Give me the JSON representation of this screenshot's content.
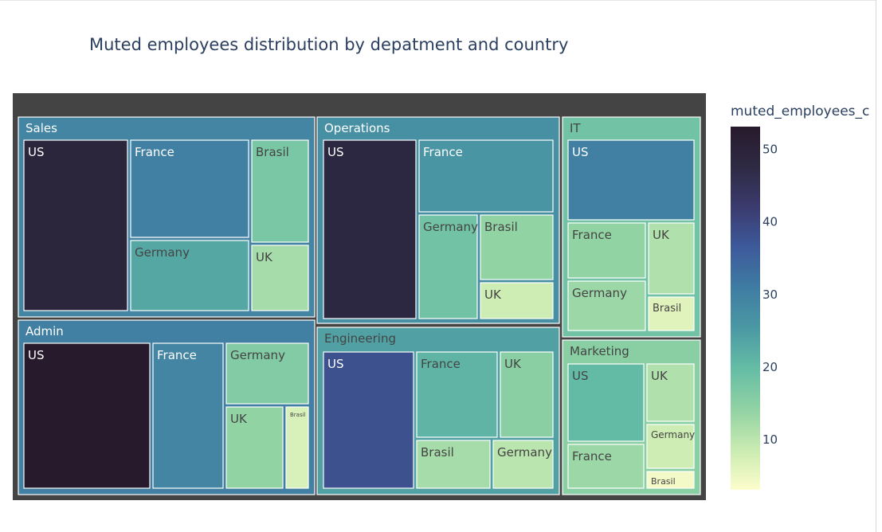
{
  "chart_data": {
    "type": "treemap",
    "title": "Muted employees distribution by depatment and country",
    "colorbar": {
      "title": "muted_employees_c",
      "range": [
        3,
        53
      ],
      "ticks": [
        10,
        20,
        30,
        40,
        50
      ],
      "colorscale": [
        "#fdfdcc",
        "#c9ebb1",
        "#91d2a4",
        "#65bda5",
        "#4b99a4",
        "#3f7ca2",
        "#3d5a9b",
        "#3b3b6e",
        "#2e2a44",
        "#271a2c"
      ]
    },
    "root_color": "#444444",
    "departments": [
      {
        "name": "Sales",
        "value": 29,
        "countries": [
          {
            "name": "US",
            "value": 49
          },
          {
            "name": "France",
            "value": 30
          },
          {
            "name": "Germany",
            "value": 23
          },
          {
            "name": "Brasil",
            "value": 17
          },
          {
            "name": "UK",
            "value": 12
          }
        ]
      },
      {
        "name": "Operations",
        "value": 27,
        "countries": [
          {
            "name": "US",
            "value": 48
          },
          {
            "name": "France",
            "value": 26
          },
          {
            "name": "Germany",
            "value": 18
          },
          {
            "name": "Brasil",
            "value": 14
          },
          {
            "name": "UK",
            "value": 8
          }
        ]
      },
      {
        "name": "IT",
        "value": 18,
        "countries": [
          {
            "name": "US",
            "value": 30
          },
          {
            "name": "France",
            "value": 14
          },
          {
            "name": "UK",
            "value": 11
          },
          {
            "name": "Germany",
            "value": 13
          },
          {
            "name": "Brasil",
            "value": 6
          }
        ]
      },
      {
        "name": "Admin",
        "value": 30,
        "countries": [
          {
            "name": "US",
            "value": 53
          },
          {
            "name": "France",
            "value": 29
          },
          {
            "name": "Germany",
            "value": 16
          },
          {
            "name": "UK",
            "value": 14
          },
          {
            "name": "Brasil",
            "value": 7
          }
        ]
      },
      {
        "name": "Engineering",
        "value": 24,
        "countries": [
          {
            "name": "US",
            "value": 38
          },
          {
            "name": "France",
            "value": 21
          },
          {
            "name": "UK",
            "value": 15
          },
          {
            "name": "Brasil",
            "value": 12
          },
          {
            "name": "Germany",
            "value": 10
          }
        ]
      },
      {
        "name": "Marketing",
        "value": 15,
        "countries": [
          {
            "name": "US",
            "value": 20
          },
          {
            "name": "UK",
            "value": 11
          },
          {
            "name": "Germany",
            "value": 8
          },
          {
            "name": "France",
            "value": 13
          },
          {
            "name": "Brasil",
            "value": 4
          }
        ]
      }
    ]
  }
}
